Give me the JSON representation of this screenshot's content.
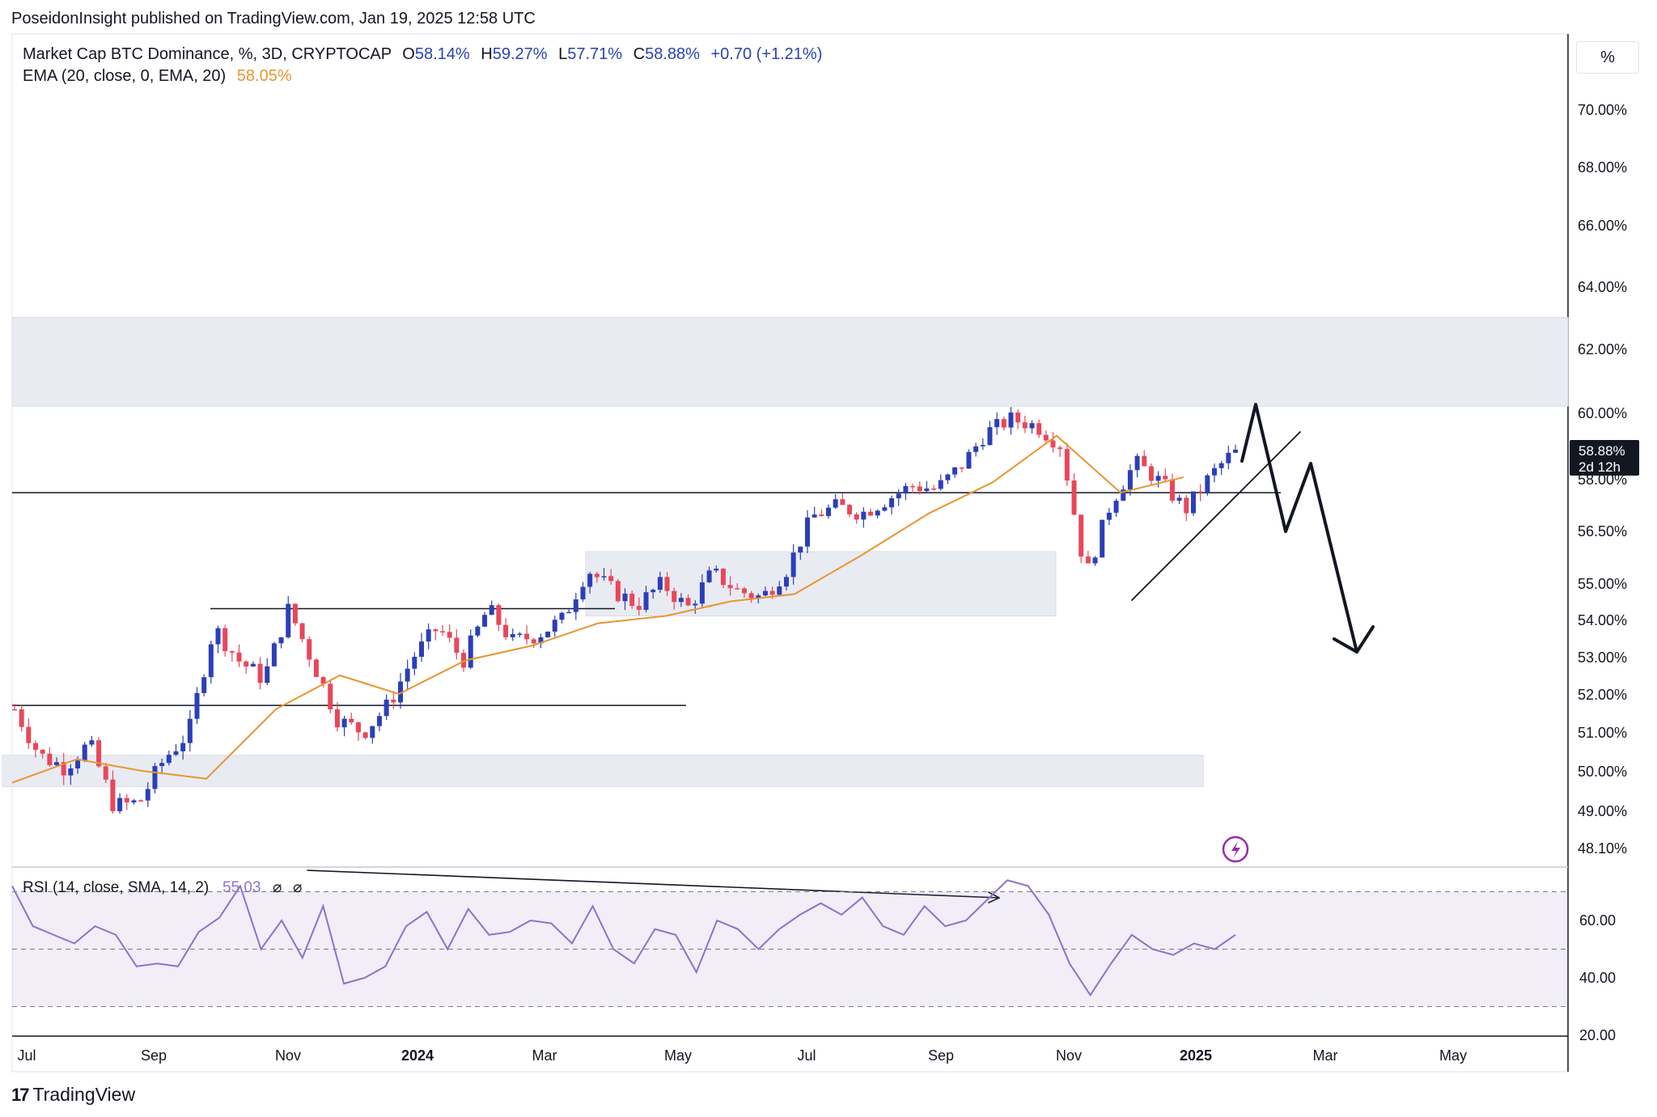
{
  "header": {
    "published": "PoseidonInsight published on TradingView.com, Jan 19, 2025 12:58 UTC",
    "symbol_title": "Market Cap BTC Dominance, %, 3D, CRYPTOCAP",
    "ohlc": {
      "O": "58.14%",
      "H": "59.27%",
      "L": "57.71%",
      "C": "58.88%",
      "change": "+0.70 (+1.21%)"
    },
    "ohlc_labels": {
      "O": "O",
      "H": "H",
      "L": "L",
      "C": "C"
    },
    "ema_label": "EMA (20, close, 0, EMA, 20)",
    "ema_value": "58.05%"
  },
  "scale_button": "%",
  "price_badge": {
    "value": "58.88%",
    "countdown": "2d 12h"
  },
  "footer": {
    "brand": "TradingView"
  },
  "colors": {
    "up": "#2b3fb8",
    "down": "#e8475a",
    "ema": "#e8952e",
    "rsi": "#8e72c7",
    "zone": "#e9ebf3",
    "ohlc_text": "#2a43b0",
    "ema_text": "#e8952e"
  },
  "chart_data": [
    {
      "type": "candlestick",
      "title": "Market Cap BTC Dominance, %, 3D, CRYPTOCAP",
      "x_axis_labels": [
        "Jul",
        "Sep",
        "Nov",
        "2024",
        "Mar",
        "May",
        "Jul",
        "Sep",
        "Nov",
        "2025",
        "Mar",
        "May"
      ],
      "y_axis_labels": [
        "70.00%",
        "68.00%",
        "66.00%",
        "64.00%",
        "62.00%",
        "60.00%",
        "58.00%",
        "56.50%",
        "55.00%",
        "54.00%",
        "53.00%",
        "52.00%",
        "51.00%",
        "50.00%",
        "49.00%",
        "48.10%"
      ],
      "series": [
        {
          "name": "EMA (20, close, 0, EMA, 20)",
          "last": 58.05
        },
        {
          "name": "Market Cap BTC Dominance",
          "last_close": 58.88
        }
      ],
      "close_path": [
        [
          "2023-07",
          51.6
        ],
        [
          "2023-07",
          50.4
        ],
        [
          "2023-08",
          50.1
        ],
        [
          "2023-08",
          50.7
        ],
        [
          "2023-09",
          49.1
        ],
        [
          "2023-09",
          49.2
        ],
        [
          "2023-10",
          50.3
        ],
        [
          "2023-10",
          51.0
        ],
        [
          "2023-10",
          53.8
        ],
        [
          "2023-11",
          52.9
        ],
        [
          "2023-11",
          52.4
        ],
        [
          "2023-12",
          54.3
        ],
        [
          "2023-12",
          52.8
        ],
        [
          "2023-12",
          51.3
        ],
        [
          "2024-01",
          51.0
        ],
        [
          "2024-01",
          51.7
        ],
        [
          "2024-01",
          53.0
        ],
        [
          "2024-02",
          53.8
        ],
        [
          "2024-02",
          52.9
        ],
        [
          "2024-03",
          54.3
        ],
        [
          "2024-03",
          53.4
        ],
        [
          "2024-03",
          53.6
        ],
        [
          "2024-04",
          54.0
        ],
        [
          "2024-04",
          55.4
        ],
        [
          "2024-04",
          54.8
        ],
        [
          "2024-05",
          54.4
        ],
        [
          "2024-05",
          55.0
        ],
        [
          "2024-06",
          54.3
        ],
        [
          "2024-06",
          55.3
        ],
        [
          "2024-06",
          54.8
        ],
        [
          "2024-07",
          54.6
        ],
        [
          "2024-07",
          55.4
        ],
        [
          "2024-08",
          56.9
        ],
        [
          "2024-08",
          57.2
        ],
        [
          "2024-08",
          57.0
        ],
        [
          "2024-09",
          57.4
        ],
        [
          "2024-09",
          57.8
        ],
        [
          "2024-10",
          57.7
        ],
        [
          "2024-10",
          58.4
        ],
        [
          "2024-10",
          59.4
        ],
        [
          "2024-11",
          59.8
        ],
        [
          "2024-11",
          59.6
        ],
        [
          "2024-11",
          59.0
        ],
        [
          "2024-12",
          55.2
        ],
        [
          "2024-12",
          57.3
        ],
        [
          "2024-12",
          58.5
        ],
        [
          "2024-12",
          57.9
        ],
        [
          "2025-01",
          57.1
        ],
        [
          "2025-01",
          58.1
        ],
        [
          "2025-01",
          58.88
        ]
      ],
      "ema_path": [
        [
          "2023-07",
          49.7
        ],
        [
          "2023-08",
          50.3
        ],
        [
          "2023-09",
          50.0
        ],
        [
          "2023-10",
          49.8
        ],
        [
          "2023-11",
          51.6
        ],
        [
          "2023-12",
          52.5
        ],
        [
          "2024-01",
          52.0
        ],
        [
          "2024-02",
          52.9
        ],
        [
          "2024-03",
          53.3
        ],
        [
          "2024-04",
          53.9
        ],
        [
          "2024-05",
          54.1
        ],
        [
          "2024-06",
          54.5
        ],
        [
          "2024-07",
          54.7
        ],
        [
          "2024-08",
          55.8
        ],
        [
          "2024-09",
          57.0
        ],
        [
          "2024-10",
          57.9
        ],
        [
          "2024-11",
          59.3
        ],
        [
          "2024-12",
          57.6
        ],
        [
          "2025-01",
          58.05
        ]
      ],
      "zones": [
        {
          "from": 60.2,
          "to": 63.0
        },
        {
          "from": 54.1,
          "to": 55.9,
          "start": "2024-04",
          "end": "2024-10"
        },
        {
          "from": 49.6,
          "to": 50.4,
          "start": "2023-07",
          "end": "2025-01"
        }
      ],
      "horizontal_lines": [
        {
          "level": 57.6
        },
        {
          "level": 54.3,
          "start": "2023-10",
          "end": "2024-04"
        },
        {
          "level": 51.7,
          "start": "2023-07",
          "end": "2024-05"
        }
      ]
    },
    {
      "type": "line",
      "title": "RSI (14, close, SMA, 14, 2)",
      "value_label": "55.03",
      "y_axis_labels": [
        "60.00",
        "40.00",
        "20.00"
      ],
      "bands": [
        70,
        50,
        30
      ],
      "values": [
        72,
        58,
        55,
        52,
        58,
        55,
        44,
        45,
        44,
        56,
        61,
        72,
        50,
        60,
        47,
        65,
        38,
        40,
        44,
        58,
        63,
        50,
        64,
        55,
        56,
        60,
        59,
        52,
        65,
        50,
        45,
        57,
        55,
        42,
        60,
        57,
        50,
        57,
        62,
        66,
        62,
        68,
        58,
        55,
        65,
        58,
        60,
        67,
        74,
        72,
        62,
        45,
        34,
        45,
        55,
        50,
        48,
        52,
        50,
        55
      ]
    }
  ]
}
